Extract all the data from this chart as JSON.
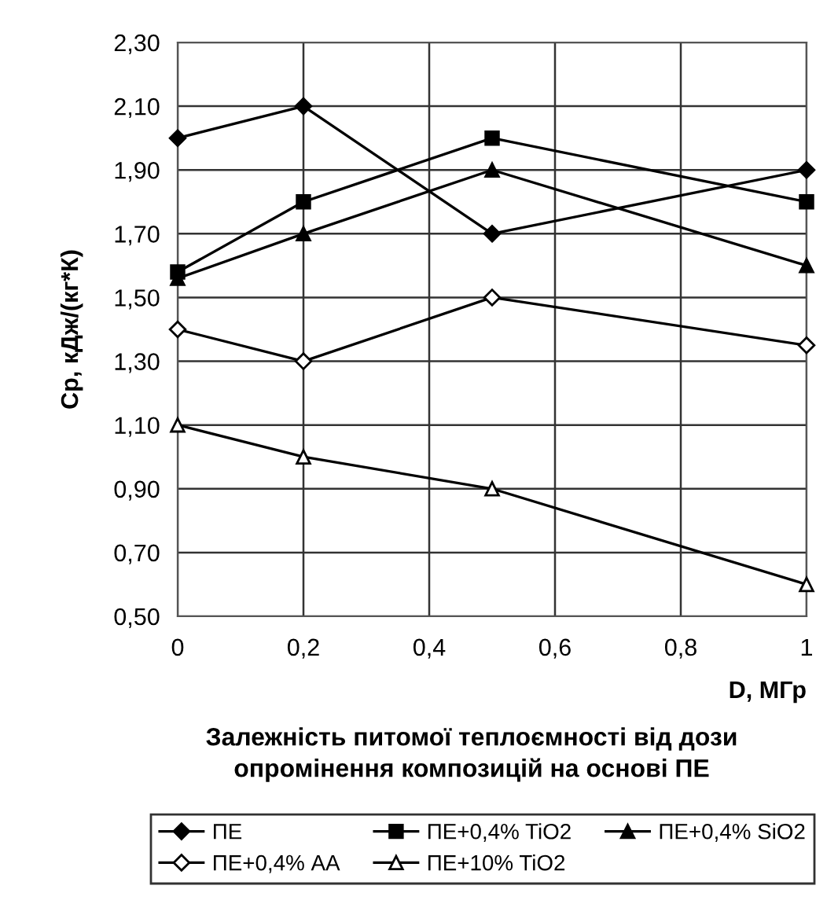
{
  "chart_data": {
    "type": "line",
    "title": "Залежність питомої теплоємності від дози\nопромінення композицій на основі ПЕ",
    "xlabel": "D, МГр",
    "ylabel": "Ср, кДж/(кг*К)",
    "x": [
      0,
      0.2,
      0.5,
      1
    ],
    "series": [
      {
        "name": "ПЕ",
        "color": "#000000",
        "marker": "diamond",
        "values": [
          2.0,
          2.1,
          1.7,
          1.9
        ]
      },
      {
        "name": "ПЕ+0,4% TiO2",
        "color": "#000000",
        "marker": "square",
        "values": [
          1.58,
          1.8,
          2.0,
          1.8
        ]
      },
      {
        "name": "ПЕ+0,4% SiO2",
        "color": "#000000",
        "marker": "triangle",
        "values": [
          1.56,
          1.7,
          1.9,
          1.6
        ]
      },
      {
        "name": "ПЕ+0,4% АА",
        "color": "#000000",
        "marker": "diamond-open",
        "values": [
          1.4,
          1.3,
          1.5,
          1.35
        ]
      },
      {
        "name": "ПЕ+10% TiO2",
        "color": "#000000",
        "marker": "triangle-open",
        "values": [
          1.1,
          1.0,
          0.9,
          0.6
        ]
      }
    ],
    "xlim": [
      0,
      1
    ],
    "xticks": [
      0,
      {
        "value": 0.2,
        "label": "0,2"
      },
      {
        "value": 0.4,
        "label": "0,4"
      },
      {
        "value": 0.6,
        "label": "0,6"
      },
      {
        "value": 0.8,
        "label": "0,8"
      },
      1
    ],
    "ylim": [
      0.5,
      2.3
    ],
    "yticks": [
      {
        "value": 0.5,
        "label": "0,50"
      },
      {
        "value": 0.7,
        "label": "0,70"
      },
      {
        "value": 0.9,
        "label": "0,90"
      },
      {
        "value": 1.1,
        "label": "1,10"
      },
      {
        "value": 1.3,
        "label": "1,30"
      },
      {
        "value": 1.5,
        "label": "1,50"
      },
      {
        "value": 1.7,
        "label": "1,70"
      },
      {
        "value": 1.9,
        "label": "1,90"
      },
      {
        "value": 2.1,
        "label": "2,10"
      },
      {
        "value": 2.3,
        "label": "2,30"
      }
    ],
    "grid": true,
    "legend": "bottom",
    "line_style": "solid"
  }
}
